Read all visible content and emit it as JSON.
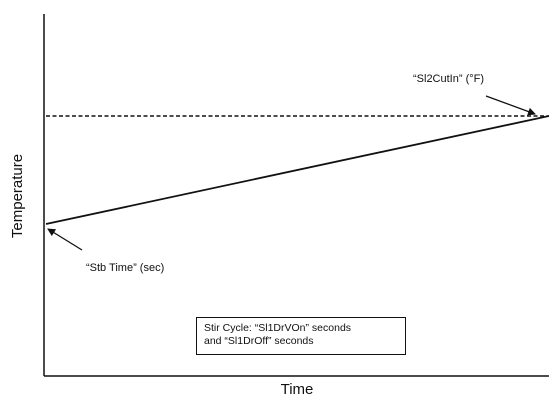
{
  "chart_data": {
    "type": "line",
    "xlabel": "Time",
    "ylabel": "Temperature",
    "x": [
      0,
      1
    ],
    "y": [
      0,
      1
    ],
    "reference_line": {
      "style": "dashed",
      "y": 1
    },
    "annotations": {
      "top": "“Sl2CutIn” (°F)",
      "bottom": "“Stb Time” (sec)"
    },
    "legend_box": {
      "line1": "Stir Cycle: “Sl1DrVOn” seconds",
      "line2": "and “Sl1DrOff” seconds"
    },
    "grid": false
  }
}
